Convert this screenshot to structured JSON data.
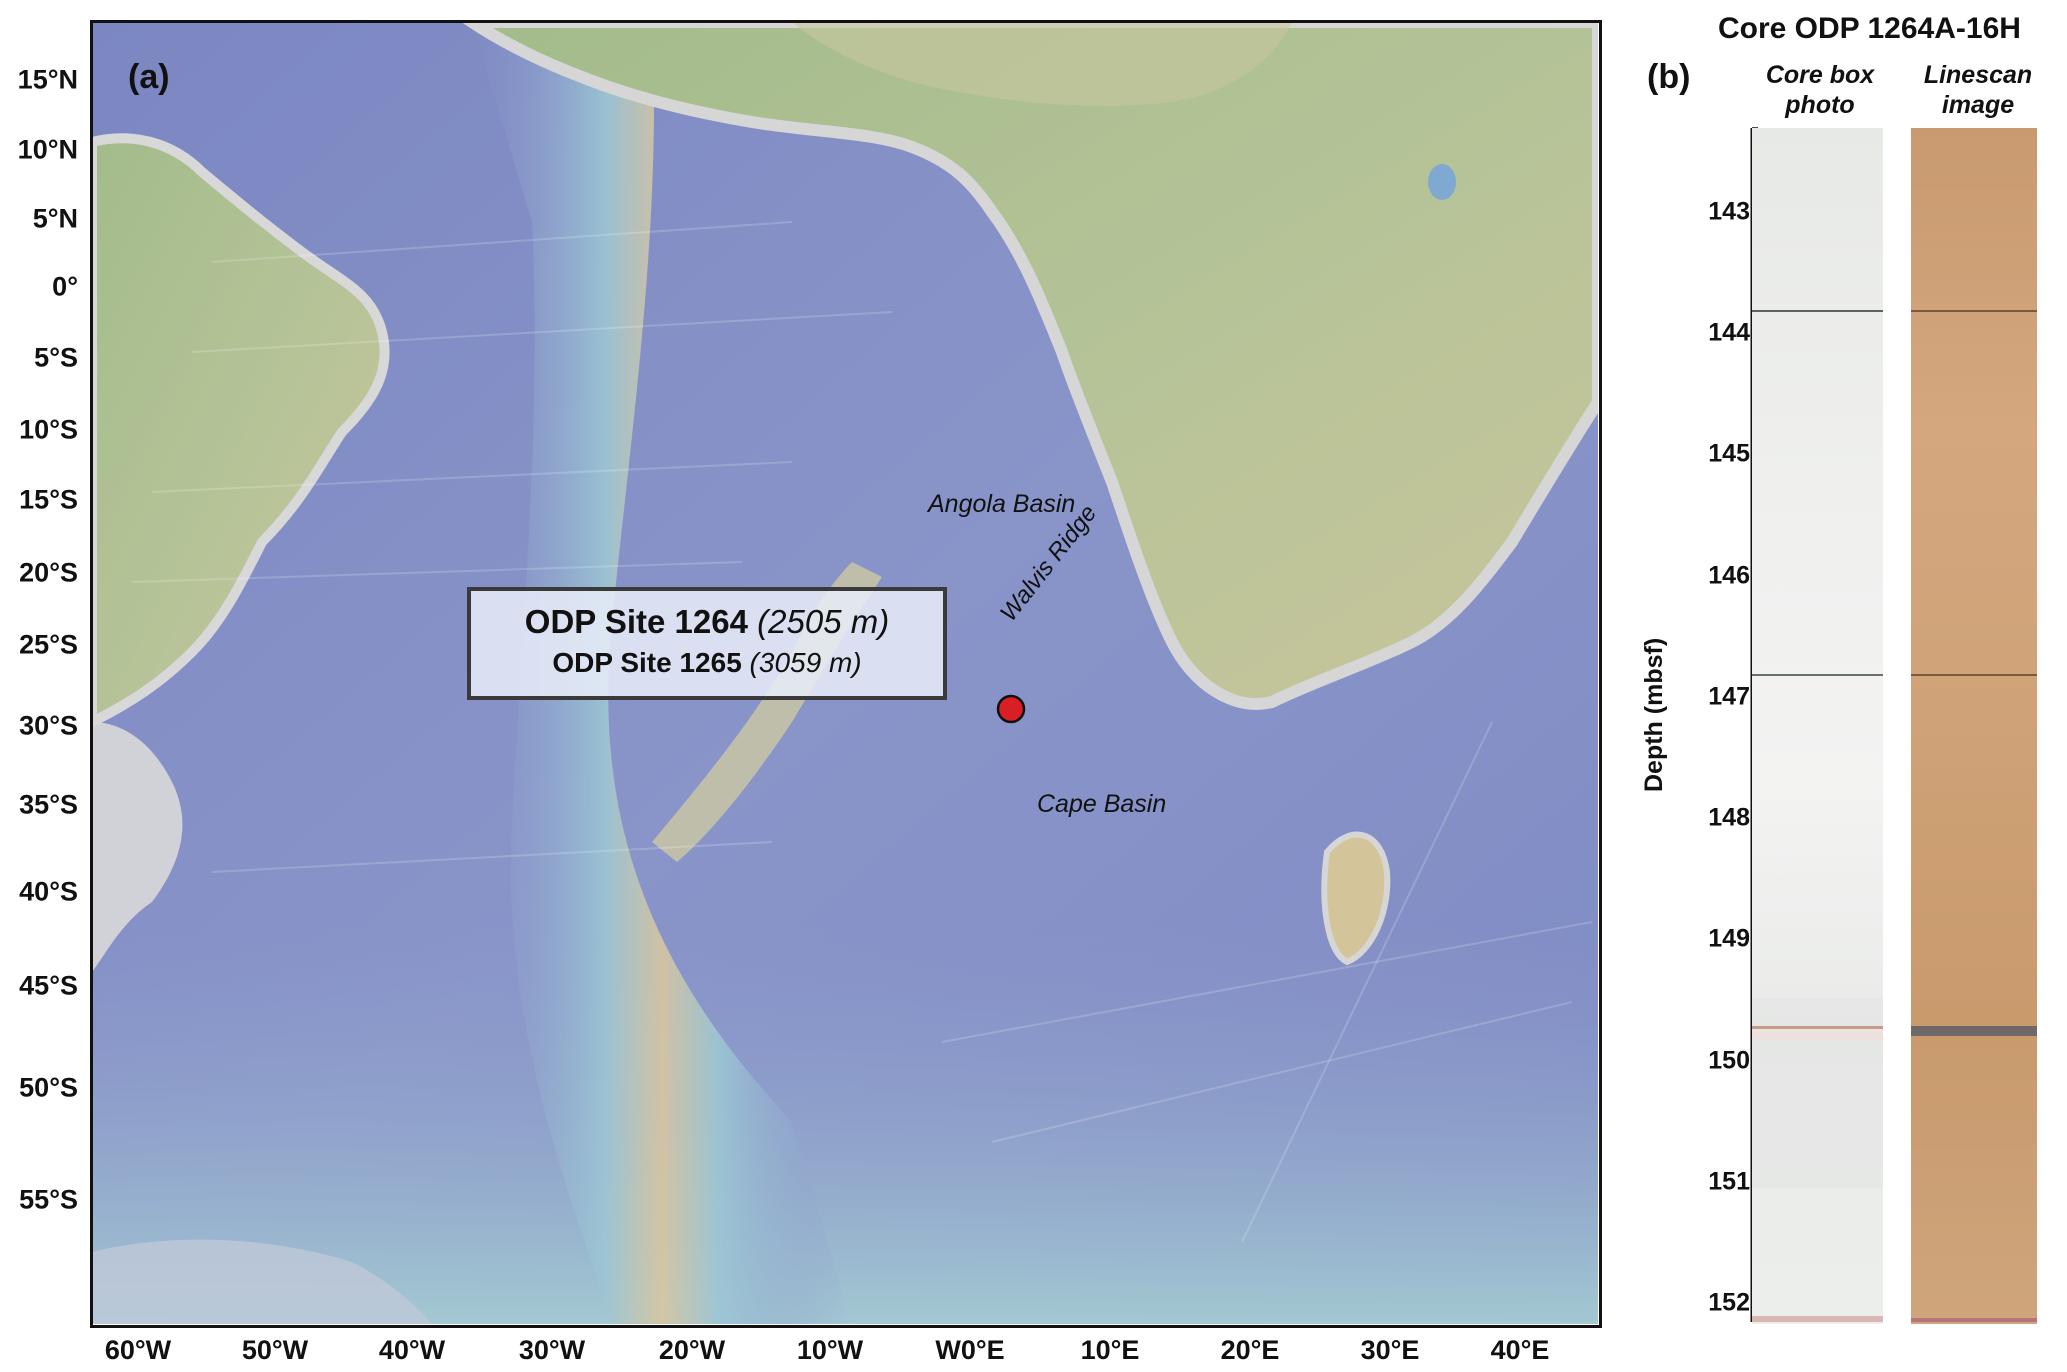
{
  "panel_a": {
    "label": "(a)",
    "lat_labels": [
      "15°N",
      "10°N",
      "5°N",
      "0°",
      "5°S",
      "10°S",
      "15°S",
      "20°S",
      "25°S",
      "30°S",
      "35°S",
      "40°S",
      "45°S",
      "50°S",
      "55°S"
    ],
    "lon_labels": [
      "60°W",
      "50°W",
      "40°W",
      "30°W",
      "20°W",
      "10°W",
      "W0°E",
      "10°E",
      "20°E",
      "30°E",
      "40°E"
    ],
    "basins": {
      "angola": "Angola Basin",
      "cape": "Cape Basin",
      "ridge": "Walvis Ridge"
    },
    "site_box": {
      "site1_name": "ODP Site 1264",
      "site1_depth": "(2505 m)",
      "site2_name": "ODP Site 1265",
      "site2_depth": "(3059 m)"
    },
    "site_marker_color": "#d81f26",
    "colors": {
      "deep_ocean": "#7f8bc4",
      "mid_ridge": "#a9cfd6",
      "land": "#a8bd8f",
      "desert": "#d8c9a0"
    }
  },
  "panel_b": {
    "label": "(b)",
    "title": "Core ODP 1264A-16H",
    "col1_head_line1": "Core box",
    "col1_head_line2": "photo",
    "col2_head_line1": "Linescan",
    "col2_head_line2": "image",
    "axis_label": "Depth (mbsf)",
    "depth_ticks": [
      "143",
      "144",
      "145",
      "146",
      "147",
      "148",
      "149",
      "150",
      "151",
      "152"
    ],
    "depth_range": [
      142.3,
      152.2
    ]
  }
}
